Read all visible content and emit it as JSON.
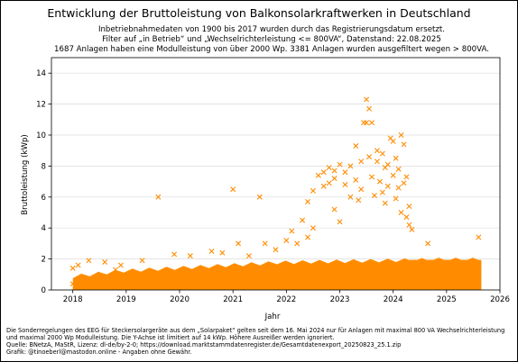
{
  "chart_data": {
    "type": "scatter",
    "title": "Entwicklung der Bruttoleistung von Balkonsolarkraftwerken in Deutschland",
    "subtitle_lines": [
      "Inbetriebnahmedaten von 1900 bis 2017 wurden durch das Registrierungsdatum ersetzt.",
      "Filter auf „in Betrieb“ und „Wechselrichterleistung <= 800VA“, Datenstand: 22.08.2025",
      "1687 Anlagen haben eine Modulleistung von über 2000 Wp. 3381 Anlagen wurden ausgefiltert wegen > 800VA."
    ],
    "xlabel": "Jahr",
    "ylabel": "Bruttoleistung (kWp)",
    "xlim": [
      2017.6,
      2026.0
    ],
    "ylim": [
      0,
      15
    ],
    "xticks": [
      2018,
      2019,
      2020,
      2021,
      2022,
      2023,
      2024,
      2025,
      2026
    ],
    "yticks": [
      0,
      2,
      4,
      6,
      8,
      10,
      12,
      14
    ],
    "grid": "horizontal",
    "marker": "x",
    "color": "#ff8c00",
    "dense_band": {
      "x_start": 2018.0,
      "x_end": 2025.65,
      "y_max": 2.0,
      "description_note": ""
    },
    "points": [
      {
        "x": 2018.0,
        "y": 0.4
      },
      {
        "x": 2018.0,
        "y": 1.4
      },
      {
        "x": 2018.1,
        "y": 1.6
      },
      {
        "x": 2018.3,
        "y": 1.9
      },
      {
        "x": 2018.6,
        "y": 1.8
      },
      {
        "x": 2018.8,
        "y": 1.3
      },
      {
        "x": 2018.9,
        "y": 1.6
      },
      {
        "x": 2019.3,
        "y": 1.9
      },
      {
        "x": 2019.6,
        "y": 6.0
      },
      {
        "x": 2019.9,
        "y": 2.3
      },
      {
        "x": 2020.2,
        "y": 2.2
      },
      {
        "x": 2020.6,
        "y": 2.5
      },
      {
        "x": 2020.8,
        "y": 2.4
      },
      {
        "x": 2021.0,
        "y": 6.5
      },
      {
        "x": 2021.1,
        "y": 3.0
      },
      {
        "x": 2021.3,
        "y": 2.2
      },
      {
        "x": 2021.5,
        "y": 6.0
      },
      {
        "x": 2021.6,
        "y": 3.0
      },
      {
        "x": 2021.8,
        "y": 2.6
      },
      {
        "x": 2022.0,
        "y": 3.2
      },
      {
        "x": 2022.1,
        "y": 3.8
      },
      {
        "x": 2022.2,
        "y": 3.0
      },
      {
        "x": 2022.3,
        "y": 4.5
      },
      {
        "x": 2022.4,
        "y": 3.4
      },
      {
        "x": 2022.4,
        "y": 5.7
      },
      {
        "x": 2022.5,
        "y": 4.0
      },
      {
        "x": 2022.5,
        "y": 6.4
      },
      {
        "x": 2022.6,
        "y": 7.4
      },
      {
        "x": 2022.7,
        "y": 6.7
      },
      {
        "x": 2022.7,
        "y": 7.6
      },
      {
        "x": 2022.8,
        "y": 6.9
      },
      {
        "x": 2022.8,
        "y": 7.9
      },
      {
        "x": 2022.9,
        "y": 7.2
      },
      {
        "x": 2022.9,
        "y": 7.7
      },
      {
        "x": 2022.9,
        "y": 5.2
      },
      {
        "x": 2023.0,
        "y": 8.1
      },
      {
        "x": 2023.0,
        "y": 4.4
      },
      {
        "x": 2023.1,
        "y": 6.8
      },
      {
        "x": 2023.1,
        "y": 7.6
      },
      {
        "x": 2023.2,
        "y": 6.0
      },
      {
        "x": 2023.2,
        "y": 8.0
      },
      {
        "x": 2023.3,
        "y": 9.3
      },
      {
        "x": 2023.3,
        "y": 7.1
      },
      {
        "x": 2023.35,
        "y": 5.8
      },
      {
        "x": 2023.4,
        "y": 8.3
      },
      {
        "x": 2023.4,
        "y": 6.5
      },
      {
        "x": 2023.45,
        "y": 10.8
      },
      {
        "x": 2023.5,
        "y": 12.3
      },
      {
        "x": 2023.5,
        "y": 10.8
      },
      {
        "x": 2023.55,
        "y": 11.7
      },
      {
        "x": 2023.55,
        "y": 8.6
      },
      {
        "x": 2023.6,
        "y": 10.8
      },
      {
        "x": 2023.6,
        "y": 7.3
      },
      {
        "x": 2023.65,
        "y": 6.1
      },
      {
        "x": 2023.7,
        "y": 8.3
      },
      {
        "x": 2023.7,
        "y": 9.0
      },
      {
        "x": 2023.75,
        "y": 7.0
      },
      {
        "x": 2023.8,
        "y": 6.3
      },
      {
        "x": 2023.8,
        "y": 8.8
      },
      {
        "x": 2023.85,
        "y": 5.6
      },
      {
        "x": 2023.85,
        "y": 7.9
      },
      {
        "x": 2023.9,
        "y": 6.7
      },
      {
        "x": 2023.9,
        "y": 8.1
      },
      {
        "x": 2023.95,
        "y": 9.8
      },
      {
        "x": 2024.0,
        "y": 9.6
      },
      {
        "x": 2024.0,
        "y": 7.4
      },
      {
        "x": 2024.05,
        "y": 8.5
      },
      {
        "x": 2024.05,
        "y": 5.9
      },
      {
        "x": 2024.1,
        "y": 6.6
      },
      {
        "x": 2024.1,
        "y": 7.8
      },
      {
        "x": 2024.15,
        "y": 10.0
      },
      {
        "x": 2024.15,
        "y": 5.0
      },
      {
        "x": 2024.2,
        "y": 9.4
      },
      {
        "x": 2024.2,
        "y": 6.9
      },
      {
        "x": 2024.25,
        "y": 4.7
      },
      {
        "x": 2024.25,
        "y": 7.3
      },
      {
        "x": 2024.3,
        "y": 5.4
      },
      {
        "x": 2024.3,
        "y": 4.2
      },
      {
        "x": 2024.35,
        "y": 3.9
      },
      {
        "x": 2024.65,
        "y": 3.0
      },
      {
        "x": 2025.6,
        "y": 3.4
      }
    ]
  },
  "footer": {
    "lines": [
      "Die Sonderregelungen des EEG für Steckersolargeräte aus dem „Solarpaket“ gelten seit dem 16. Mai 2024 nur für Anlagen mit maximal 800 VA Wechselrichterleistung",
      "und maximal 2000 Wp Modulleistung. Die Y-Achse ist limitiert auf 14 kWp. Höhere Ausreißer werden ignoriert.",
      "Quelle: BNetzA, MaStR, Lizenz: dl-de/by-2-0; https://download.marktstammdatenregister.de/Gesamtdatenexport_20250823_25.1.zip",
      "Grafik: @tinoeberl@mastodon.online - Angaben ohne Gewähr."
    ]
  }
}
